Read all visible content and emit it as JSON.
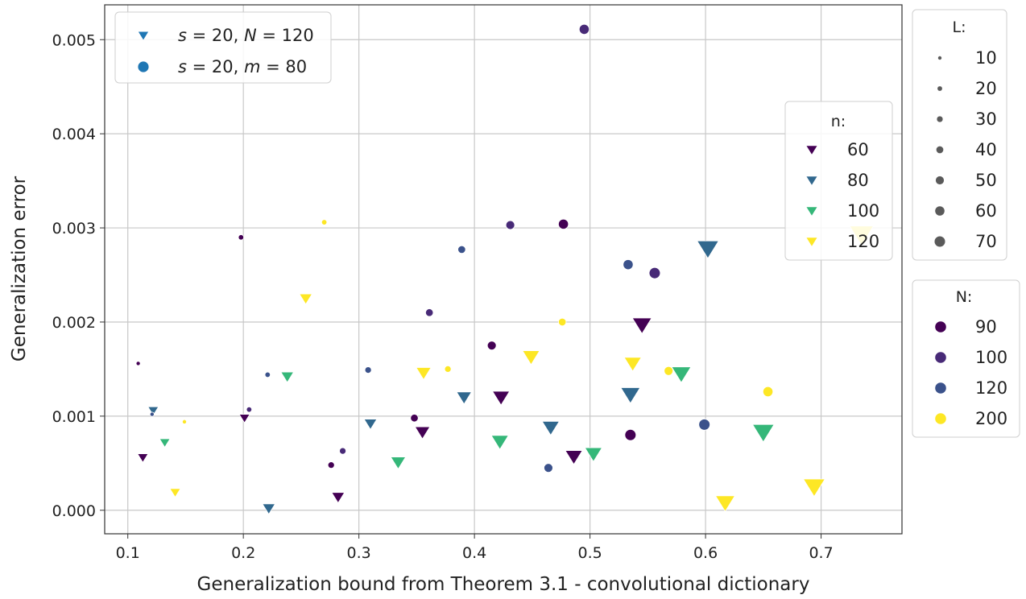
{
  "chart_data": {
    "type": "scatter",
    "xlabel": "Generalization bound from Theorem 3.1 - convolutional dictionary",
    "ylabel": "Generalization error",
    "xlim": [
      0.08,
      0.77
    ],
    "ylim": [
      -0.00025,
      0.00537
    ],
    "xticks": [
      0.1,
      0.2,
      0.3,
      0.4,
      0.5,
      0.6,
      0.7
    ],
    "xtick_labels": [
      "0.1",
      "0.2",
      "0.3",
      "0.4",
      "0.5",
      "0.6",
      "0.7"
    ],
    "yticks": [
      0,
      0.001,
      0.002,
      0.003,
      0.004,
      0.005
    ],
    "ytick_labels": [
      "0.000",
      "0.001",
      "0.002",
      "0.003",
      "0.004",
      "0.005"
    ],
    "grid": true,
    "series": [
      {
        "name": "s = 20, N = 120",
        "marker": "triangle-down",
        "color_encodes": "n",
        "size_encodes": "L",
        "points": [
          {
            "x": 0.282,
            "y": 0.00014,
            "n": 60,
            "L": 20
          },
          {
            "x": 0.355,
            "y": 0.00083,
            "n": 60,
            "L": 30
          },
          {
            "x": 0.423,
            "y": 0.0012,
            "n": 60,
            "L": 40
          },
          {
            "x": 0.486,
            "y": 0.00057,
            "n": 60,
            "L": 40
          },
          {
            "x": 0.545,
            "y": 0.00197,
            "n": 60,
            "L": 50
          },
          {
            "x": 0.201,
            "y": 0.00098,
            "n": 60,
            "L": 10
          },
          {
            "x": 0.113,
            "y": 0.00056,
            "n": 60,
            "L": 10
          },
          {
            "x": 0.122,
            "y": 0.00106,
            "n": 80,
            "L": 10
          },
          {
            "x": 0.222,
            "y": 2e-05,
            "n": 80,
            "L": 20
          },
          {
            "x": 0.31,
            "y": 0.00092,
            "n": 80,
            "L": 20
          },
          {
            "x": 0.391,
            "y": 0.0012,
            "n": 80,
            "L": 30
          },
          {
            "x": 0.466,
            "y": 0.00088,
            "n": 80,
            "L": 40
          },
          {
            "x": 0.535,
            "y": 0.00123,
            "n": 80,
            "L": 50
          },
          {
            "x": 0.602,
            "y": 0.00278,
            "n": 80,
            "L": 60
          },
          {
            "x": 0.132,
            "y": 0.00072,
            "n": 100,
            "L": 10
          },
          {
            "x": 0.238,
            "y": 0.00142,
            "n": 100,
            "L": 20
          },
          {
            "x": 0.334,
            "y": 0.00051,
            "n": 100,
            "L": 30
          },
          {
            "x": 0.422,
            "y": 0.00073,
            "n": 100,
            "L": 40
          },
          {
            "x": 0.503,
            "y": 0.0006,
            "n": 100,
            "L": 40
          },
          {
            "x": 0.579,
            "y": 0.00145,
            "n": 100,
            "L": 50
          },
          {
            "x": 0.65,
            "y": 0.00083,
            "n": 100,
            "L": 60
          },
          {
            "x": 0.141,
            "y": 0.00019,
            "n": 120,
            "L": 10
          },
          {
            "x": 0.254,
            "y": 0.00225,
            "n": 120,
            "L": 20
          },
          {
            "x": 0.356,
            "y": 0.00146,
            "n": 120,
            "L": 30
          },
          {
            "x": 0.449,
            "y": 0.00163,
            "n": 120,
            "L": 40
          },
          {
            "x": 0.537,
            "y": 0.00156,
            "n": 120,
            "L": 40
          },
          {
            "x": 0.617,
            "y": 8e-05,
            "n": 120,
            "L": 50
          },
          {
            "x": 0.694,
            "y": 0.00025,
            "n": 120,
            "L": 60
          },
          {
            "x": 0.735,
            "y": 0.00293,
            "n": 120,
            "L": 70
          }
        ]
      },
      {
        "name": "s = 20, m = 80",
        "marker": "circle",
        "color_encodes": "N",
        "size_encodes": "L",
        "points": [
          {
            "x": 0.109,
            "y": 0.00156,
            "N": 90,
            "L": 10
          },
          {
            "x": 0.198,
            "y": 0.0029,
            "N": 90,
            "L": 20
          },
          {
            "x": 0.276,
            "y": 0.00048,
            "N": 90,
            "L": 30
          },
          {
            "x": 0.348,
            "y": 0.00098,
            "N": 90,
            "L": 40
          },
          {
            "x": 0.415,
            "y": 0.00175,
            "N": 90,
            "L": 50
          },
          {
            "x": 0.477,
            "y": 0.00304,
            "N": 90,
            "L": 60
          },
          {
            "x": 0.535,
            "y": 0.0008,
            "N": 90,
            "L": 70
          },
          {
            "x": 0.205,
            "y": 0.00107,
            "N": 100,
            "L": 20
          },
          {
            "x": 0.286,
            "y": 0.00063,
            "N": 100,
            "L": 30
          },
          {
            "x": 0.361,
            "y": 0.0021,
            "N": 100,
            "L": 40
          },
          {
            "x": 0.431,
            "y": 0.00303,
            "N": 100,
            "L": 50
          },
          {
            "x": 0.495,
            "y": 0.00511,
            "N": 100,
            "L": 60
          },
          {
            "x": 0.556,
            "y": 0.00252,
            "N": 100,
            "L": 70
          },
          {
            "x": 0.121,
            "y": 0.00102,
            "N": 120,
            "L": 10
          },
          {
            "x": 0.221,
            "y": 0.00144,
            "N": 120,
            "L": 20
          },
          {
            "x": 0.308,
            "y": 0.00149,
            "N": 120,
            "L": 30
          },
          {
            "x": 0.389,
            "y": 0.00277,
            "N": 120,
            "L": 40
          },
          {
            "x": 0.464,
            "y": 0.00045,
            "N": 120,
            "L": 50
          },
          {
            "x": 0.533,
            "y": 0.00261,
            "N": 120,
            "L": 60
          },
          {
            "x": 0.599,
            "y": 0.00091,
            "N": 120,
            "L": 70
          },
          {
            "x": 0.149,
            "y": 0.00094,
            "N": 200,
            "L": 10
          },
          {
            "x": 0.27,
            "y": 0.00306,
            "N": 200,
            "L": 20
          },
          {
            "x": 0.377,
            "y": 0.0015,
            "N": 200,
            "L": 30
          },
          {
            "x": 0.476,
            "y": 0.002,
            "N": 200,
            "L": 40
          },
          {
            "x": 0.568,
            "y": 0.00148,
            "N": 200,
            "L": 50
          },
          {
            "x": 0.654,
            "y": 0.00126,
            "N": 200,
            "L": 60
          }
        ]
      }
    ],
    "color_map": {
      "n": {
        "60": "#440154",
        "80": "#31688e",
        "100": "#35b779",
        "120": "#fde725"
      },
      "N": {
        "90": "#440154",
        "100": "#482a77",
        "120": "#3b528b",
        "200": "#fde725"
      }
    },
    "legends": {
      "marker": {
        "placement": "upper-left",
        "marker_color": "#1f77b4",
        "entries": [
          {
            "marker": "triangle-down",
            "label_prefix": "s",
            "label_mid": " = 20, ",
            "label_var": "N",
            "label_suffix": " = 120"
          },
          {
            "marker": "circle",
            "label_prefix": "s",
            "label_mid": " = 20, ",
            "label_var": "m",
            "label_suffix": " = 80"
          }
        ]
      },
      "n": {
        "title": "n:",
        "placement": "inside-right",
        "values": [
          "60",
          "80",
          "100",
          "120"
        ]
      },
      "L": {
        "title": "L:",
        "placement": "outside-right-top",
        "marker_color": "#5a5a5a",
        "values": [
          "10",
          "20",
          "30",
          "40",
          "50",
          "60",
          "70"
        ]
      },
      "N": {
        "title": "N:",
        "placement": "outside-right-bottom",
        "values": [
          "90",
          "100",
          "120",
          "200"
        ]
      }
    }
  }
}
